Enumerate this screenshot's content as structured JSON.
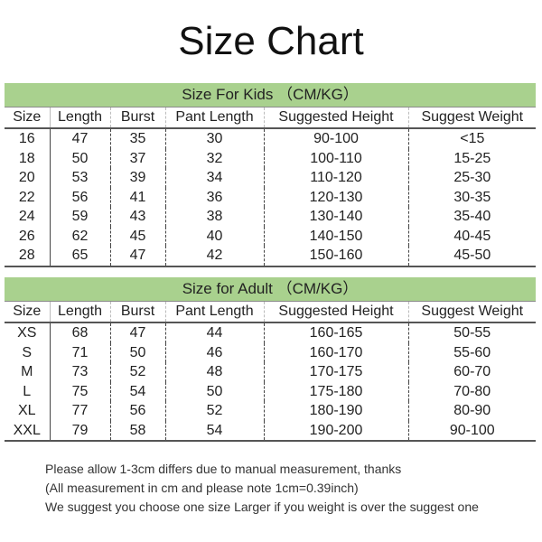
{
  "title": "Size Chart",
  "columns": [
    "Size",
    "Length",
    "Burst",
    "Pant Length",
    "Suggested Height",
    "Suggest Weight"
  ],
  "colors": {
    "header_band": "#a9d18e",
    "alt_row": "#d9d9d9"
  },
  "kids": {
    "heading": "Size For Kids （CM/KG）",
    "rows": [
      [
        "16",
        "47",
        "35",
        "30",
        "90-100",
        "<15"
      ],
      [
        "18",
        "50",
        "37",
        "32",
        "100-110",
        "15-25"
      ],
      [
        "20",
        "53",
        "39",
        "34",
        "110-120",
        "25-30"
      ],
      [
        "22",
        "56",
        "41",
        "36",
        "120-130",
        "30-35"
      ],
      [
        "24",
        "59",
        "43",
        "38",
        "130-140",
        "35-40"
      ],
      [
        "26",
        "62",
        "45",
        "40",
        "140-150",
        "40-45"
      ],
      [
        "28",
        "65",
        "47",
        "42",
        "150-160",
        "45-50"
      ]
    ]
  },
  "adult": {
    "heading": "Size for Adult （CM/KG）",
    "rows": [
      [
        "XS",
        "68",
        "47",
        "44",
        "160-165",
        "50-55"
      ],
      [
        "S",
        "71",
        "50",
        "46",
        "160-170",
        "55-60"
      ],
      [
        "M",
        "73",
        "52",
        "48",
        "170-175",
        "60-70"
      ],
      [
        "L",
        "75",
        "54",
        "50",
        "175-180",
        "70-80"
      ],
      [
        "XL",
        "77",
        "56",
        "52",
        "180-190",
        "80-90"
      ],
      [
        "XXL",
        "79",
        "58",
        "54",
        "190-200",
        "90-100"
      ]
    ]
  },
  "notes": [
    "Please allow 1-3cm differs due to manual measurement, thanks",
    "(All measurement in cm and please note 1cm=0.39inch)",
    "We suggest you choose one size Larger if you weight is over the suggest one"
  ]
}
